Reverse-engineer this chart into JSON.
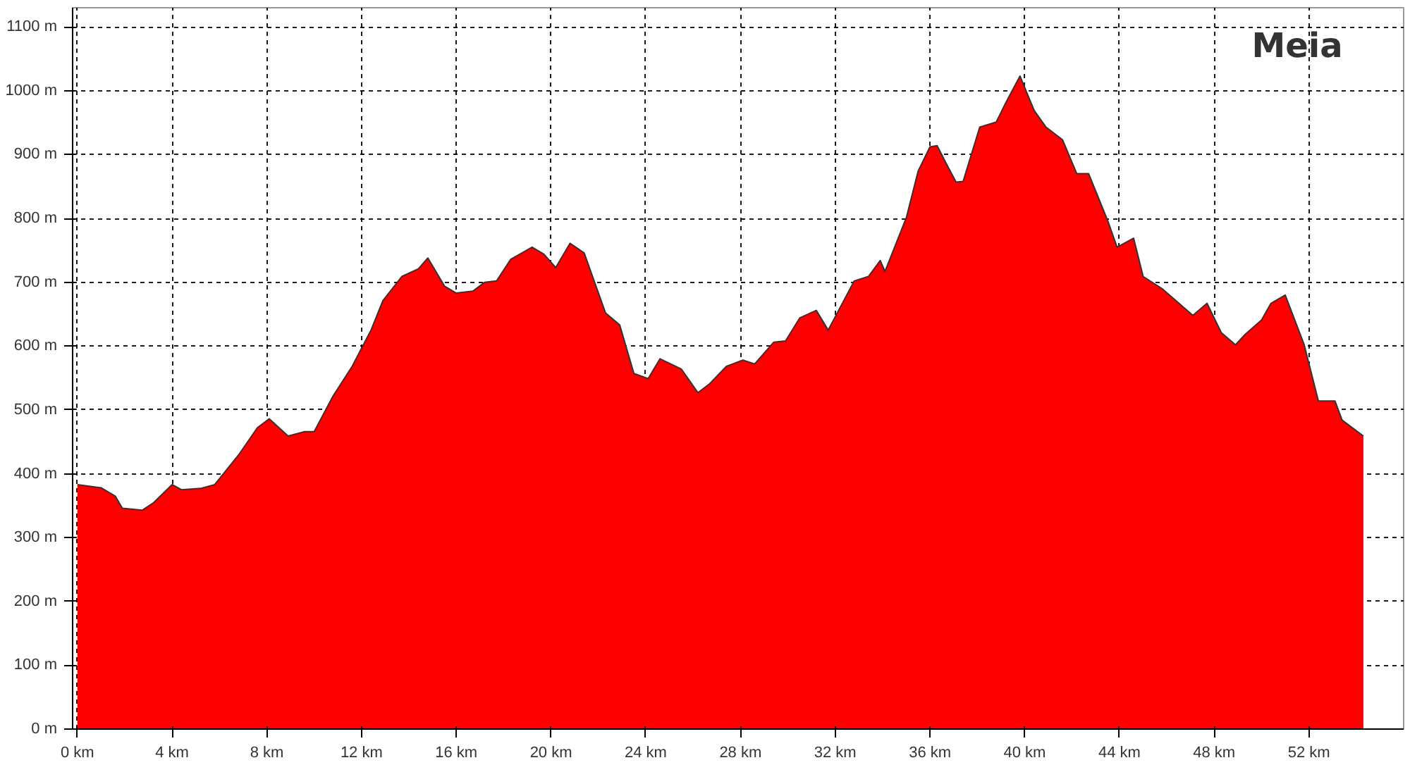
{
  "chart_data": {
    "type": "area",
    "title": "Meia",
    "x": [
      0,
      1.0,
      1.6,
      1.9,
      2.75,
      3.2,
      4.0,
      4.4,
      5.2,
      5.8,
      6.8,
      7.6,
      8.1,
      8.9,
      9.6,
      10.0,
      10.8,
      11.6,
      12.4,
      12.9,
      13.7,
      14.4,
      14.8,
      15.5,
      16.0,
      16.7,
      17.2,
      17.7,
      18.3,
      19.2,
      19.7,
      20.2,
      20.8,
      21.4,
      22.3,
      22.9,
      23.5,
      24.1,
      24.6,
      25.5,
      26.2,
      26.7,
      27.4,
      28.1,
      28.6,
      29.4,
      29.9,
      30.5,
      31.2,
      31.7,
      32.8,
      33.4,
      33.9,
      34.1,
      35.0,
      35.5,
      36.0,
      36.3,
      36.7,
      37.1,
      37.4,
      38.1,
      38.8,
      39.2,
      39.8,
      40.4,
      40.9,
      41.6,
      42.2,
      42.7,
      43.5,
      43.9,
      44.6,
      45.0,
      45.8,
      47.1,
      47.7,
      48.3,
      48.9,
      49.3,
      50.0,
      50.4,
      51.0,
      51.8,
      52.4,
      53.1,
      53.4,
      54.3
    ],
    "series": [
      {
        "color": "#ff0000",
        "values": [
          383,
          378,
          365,
          346,
          343,
          354,
          383,
          375,
          377,
          383,
          429,
          472,
          486,
          459,
          466,
          466,
          522,
          568,
          625,
          671,
          709,
          721,
          738,
          694,
          683,
          686,
          700,
          702,
          736,
          755,
          744,
          723,
          761,
          746,
          652,
          633,
          557,
          549,
          580,
          564,
          527,
          541,
          568,
          578,
          572,
          606,
          608,
          644,
          656,
          625,
          702,
          709,
          734,
          717,
          801,
          874,
          912,
          914,
          885,
          857,
          858,
          943,
          951,
          981,
          1023,
          969,
          943,
          923,
          870,
          870,
          797,
          755,
          769,
          709,
          690,
          648,
          667,
          621,
          602,
          618,
          641,
          667,
          680,
          602,
          514,
          514,
          484,
          459
        ]
      }
    ],
    "xlim": [
      -0.2,
      56
    ],
    "ylim": [
      0,
      1130
    ],
    "xticks": [
      {
        "value": 0,
        "label": "0 km"
      },
      {
        "value": 4,
        "label": "4 km"
      },
      {
        "value": 8,
        "label": "8 km"
      },
      {
        "value": 12,
        "label": "12 km"
      },
      {
        "value": 16,
        "label": "16 km"
      },
      {
        "value": 20,
        "label": "20 km"
      },
      {
        "value": 24,
        "label": "24 km"
      },
      {
        "value": 28,
        "label": "28 km"
      },
      {
        "value": 32,
        "label": "32 km"
      },
      {
        "value": 36,
        "label": "36 km"
      },
      {
        "value": 40,
        "label": "40 km"
      },
      {
        "value": 44,
        "label": "44 km"
      },
      {
        "value": 48,
        "label": "48 km"
      },
      {
        "value": 52,
        "label": "52 km"
      }
    ],
    "yticks": [
      {
        "value": 0,
        "label": "0 m"
      },
      {
        "value": 100,
        "label": "100 m"
      },
      {
        "value": 200,
        "label": "200 m"
      },
      {
        "value": 300,
        "label": "300 m"
      },
      {
        "value": 400,
        "label": "400 m"
      },
      {
        "value": 500,
        "label": "500 m"
      },
      {
        "value": 600,
        "label": "600 m"
      },
      {
        "value": 700,
        "label": "700 m"
      },
      {
        "value": 800,
        "label": "800 m"
      },
      {
        "value": 900,
        "label": "900 m"
      },
      {
        "value": 1000,
        "label": "1000 m"
      },
      {
        "value": 1100,
        "label": "1100 m"
      }
    ],
    "grid": true
  }
}
